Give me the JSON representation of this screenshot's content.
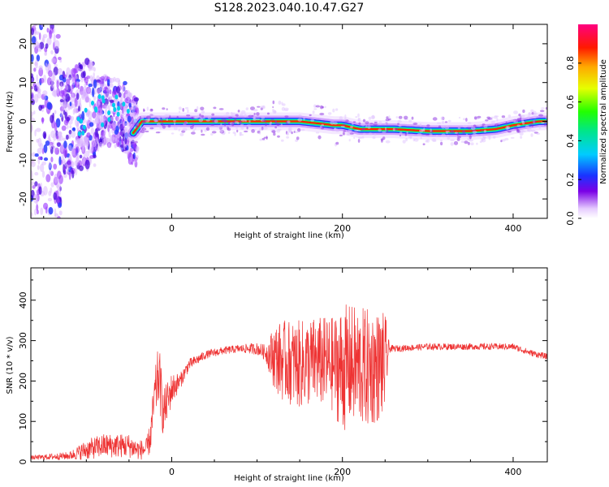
{
  "figure_title": "S128.2023.040.10.47.G27",
  "chart_data": [
    {
      "type": "heatmap",
      "xlabel": "Height of straight line (km)",
      "ylabel": "Frequency (Hz)",
      "xlim": [
        -165,
        440
      ],
      "ylim": [
        -25,
        25
      ],
      "xticks": [
        0,
        200,
        400
      ],
      "yticks": [
        -20,
        -10,
        0,
        10,
        20
      ],
      "colormap": "gist_ncar-like (white-purple-blue-cyan-green-yellow-red-pink)",
      "colorbar": {
        "label": "Normalized spectral amplitude",
        "range": [
          0.0,
          1.0
        ],
        "ticks": [
          "0.0",
          "0.2",
          "0.4",
          "0.6",
          "0.8"
        ]
      },
      "ridge_frequency": {
        "x": [
          -165,
          -150,
          -130,
          -110,
          -90,
          -75,
          -55,
          -45,
          -35,
          -20,
          0,
          50,
          100,
          150,
          190,
          200,
          220,
          260,
          300,
          350,
          380,
          400,
          430,
          440
        ],
        "freq": [
          0,
          2,
          -2,
          1,
          2,
          3,
          1,
          -3,
          0,
          0,
          0,
          0,
          0,
          0,
          -1,
          -1,
          -2,
          -2,
          -2.5,
          -2.5,
          -2,
          -1,
          0,
          0
        ]
      },
      "noisy_region_x": [
        -165,
        -50
      ]
    },
    {
      "type": "line",
      "xlabel": "Height of straight line (km)",
      "ylabel": "SNR (10 * v/v)",
      "xlim": [
        -165,
        440
      ],
      "ylim": [
        0,
        480
      ],
      "xticks": [
        0,
        200,
        400
      ],
      "yticks": [
        0,
        100,
        200,
        300,
        400
      ],
      "color": "#ee3333",
      "series": [
        {
          "x": [
            -165,
            -120,
            -100,
            -80,
            -50,
            -40,
            -30,
            -25,
            -20,
            -15,
            -10,
            -5,
            0,
            10,
            20,
            40,
            60,
            80,
            100,
            110,
            120,
            130,
            150,
            170,
            190,
            200,
            210,
            230,
            250,
            255,
            260,
            300,
            350,
            400,
            420,
            440
          ],
          "y": [
            10,
            15,
            30,
            40,
            40,
            30,
            30,
            60,
            160,
            220,
            120,
            150,
            180,
            200,
            240,
            265,
            275,
            280,
            280,
            270,
            260,
            250,
            240,
            250,
            240,
            230,
            240,
            230,
            240,
            280,
            280,
            285,
            285,
            285,
            270,
            260
          ],
          "noise_amp": [
            5,
            10,
            25,
            30,
            30,
            25,
            25,
            40,
            60,
            80,
            60,
            50,
            40,
            20,
            15,
            10,
            10,
            10,
            15,
            20,
            80,
            100,
            110,
            110,
            120,
            160,
            150,
            150,
            130,
            10,
            8,
            8,
            8,
            8,
            8,
            8
          ]
        }
      ]
    }
  ]
}
